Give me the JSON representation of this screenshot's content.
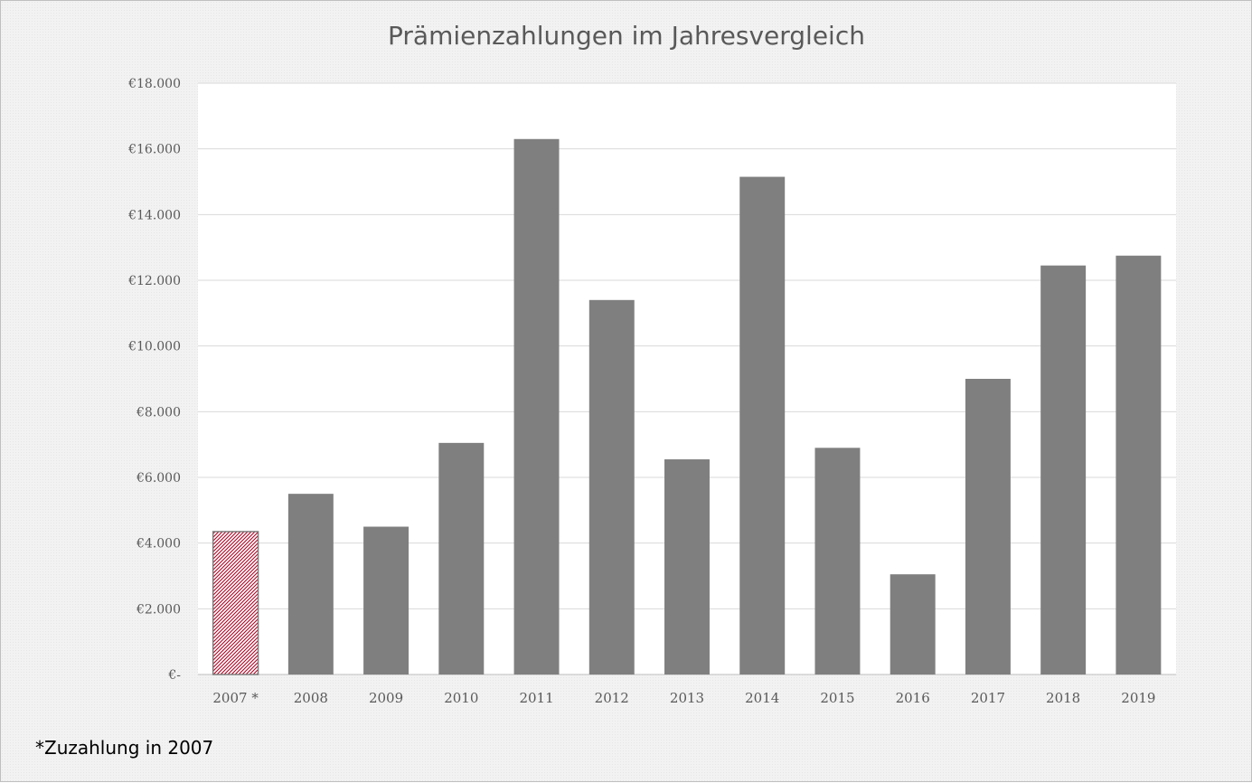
{
  "chart_data": {
    "type": "bar",
    "title": "Prämienzahlungen im Jahresvergleich",
    "categories": [
      "2007 *",
      "2008",
      "2009",
      "2010",
      "2011",
      "2012",
      "2013",
      "2014",
      "2015",
      "2016",
      "2017",
      "2018",
      "2019"
    ],
    "values": [
      4350,
      5500,
      4500,
      7050,
      16300,
      11400,
      6550,
      15150,
      6900,
      3050,
      9000,
      12450,
      12750
    ],
    "ylim": [
      0,
      18000
    ],
    "yticks": [
      0,
      2000,
      4000,
      6000,
      8000,
      10000,
      12000,
      14000,
      16000,
      18000
    ],
    "ytick_labels": [
      "€-",
      "€2.000",
      "€4.000",
      "€6.000",
      "€8.000",
      "€10.000",
      "€12.000",
      "€14.000",
      "€16.000",
      "€18.000"
    ],
    "grid": true,
    "colors": {
      "bar": "#7f7f7f",
      "highlight_outline": "#7f7f7f",
      "highlight_hatch": "#b00020"
    },
    "highlighted_category": "2007 *"
  },
  "footnote": "*Zuzahlung in 2007"
}
